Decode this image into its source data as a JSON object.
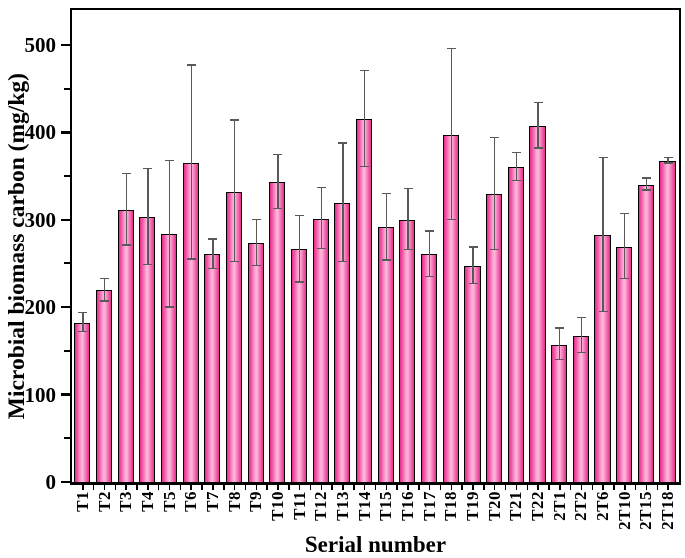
{
  "chart_data": {
    "type": "bar",
    "title": "",
    "xlabel": "Serial number",
    "ylabel": "Microbial biomass carbon (mg/kg)",
    "categories": [
      "T1",
      "T2",
      "T3",
      "T4",
      "T5",
      "T6",
      "T7",
      "T8",
      "T9",
      "T10",
      "T11",
      "T12",
      "T13",
      "T14",
      "T15",
      "T16",
      "T17",
      "T18",
      "T19",
      "T20",
      "T21",
      "T22",
      "2T1",
      "2T2",
      "2T6",
      "2T10",
      "2T15",
      "2T18"
    ],
    "values": [
      183,
      220,
      312,
      304,
      284,
      366,
      261,
      333,
      274,
      344,
      267,
      302,
      320,
      416,
      292,
      301,
      261,
      398,
      248,
      330,
      361,
      408,
      158,
      168,
      283,
      270,
      341,
      368
    ],
    "errors": [
      11,
      13,
      41,
      55,
      84,
      111,
      17,
      81,
      26,
      31,
      38,
      35,
      68,
      55,
      38,
      35,
      26,
      98,
      21,
      64,
      16,
      26,
      18,
      20,
      88,
      37,
      7,
      3
    ],
    "ylim": [
      0,
      540
    ],
    "yticks": [
      0,
      100,
      200,
      300,
      400,
      500
    ],
    "minor_tick_interval": 50,
    "grid": false,
    "legend": "none",
    "bar_edge_color": "#e62e8d",
    "bar_center_color": "#ffb6dc",
    "bar_outline_color": "#000000",
    "error_bar_color": "#595959",
    "axis_color": "#000000"
  }
}
